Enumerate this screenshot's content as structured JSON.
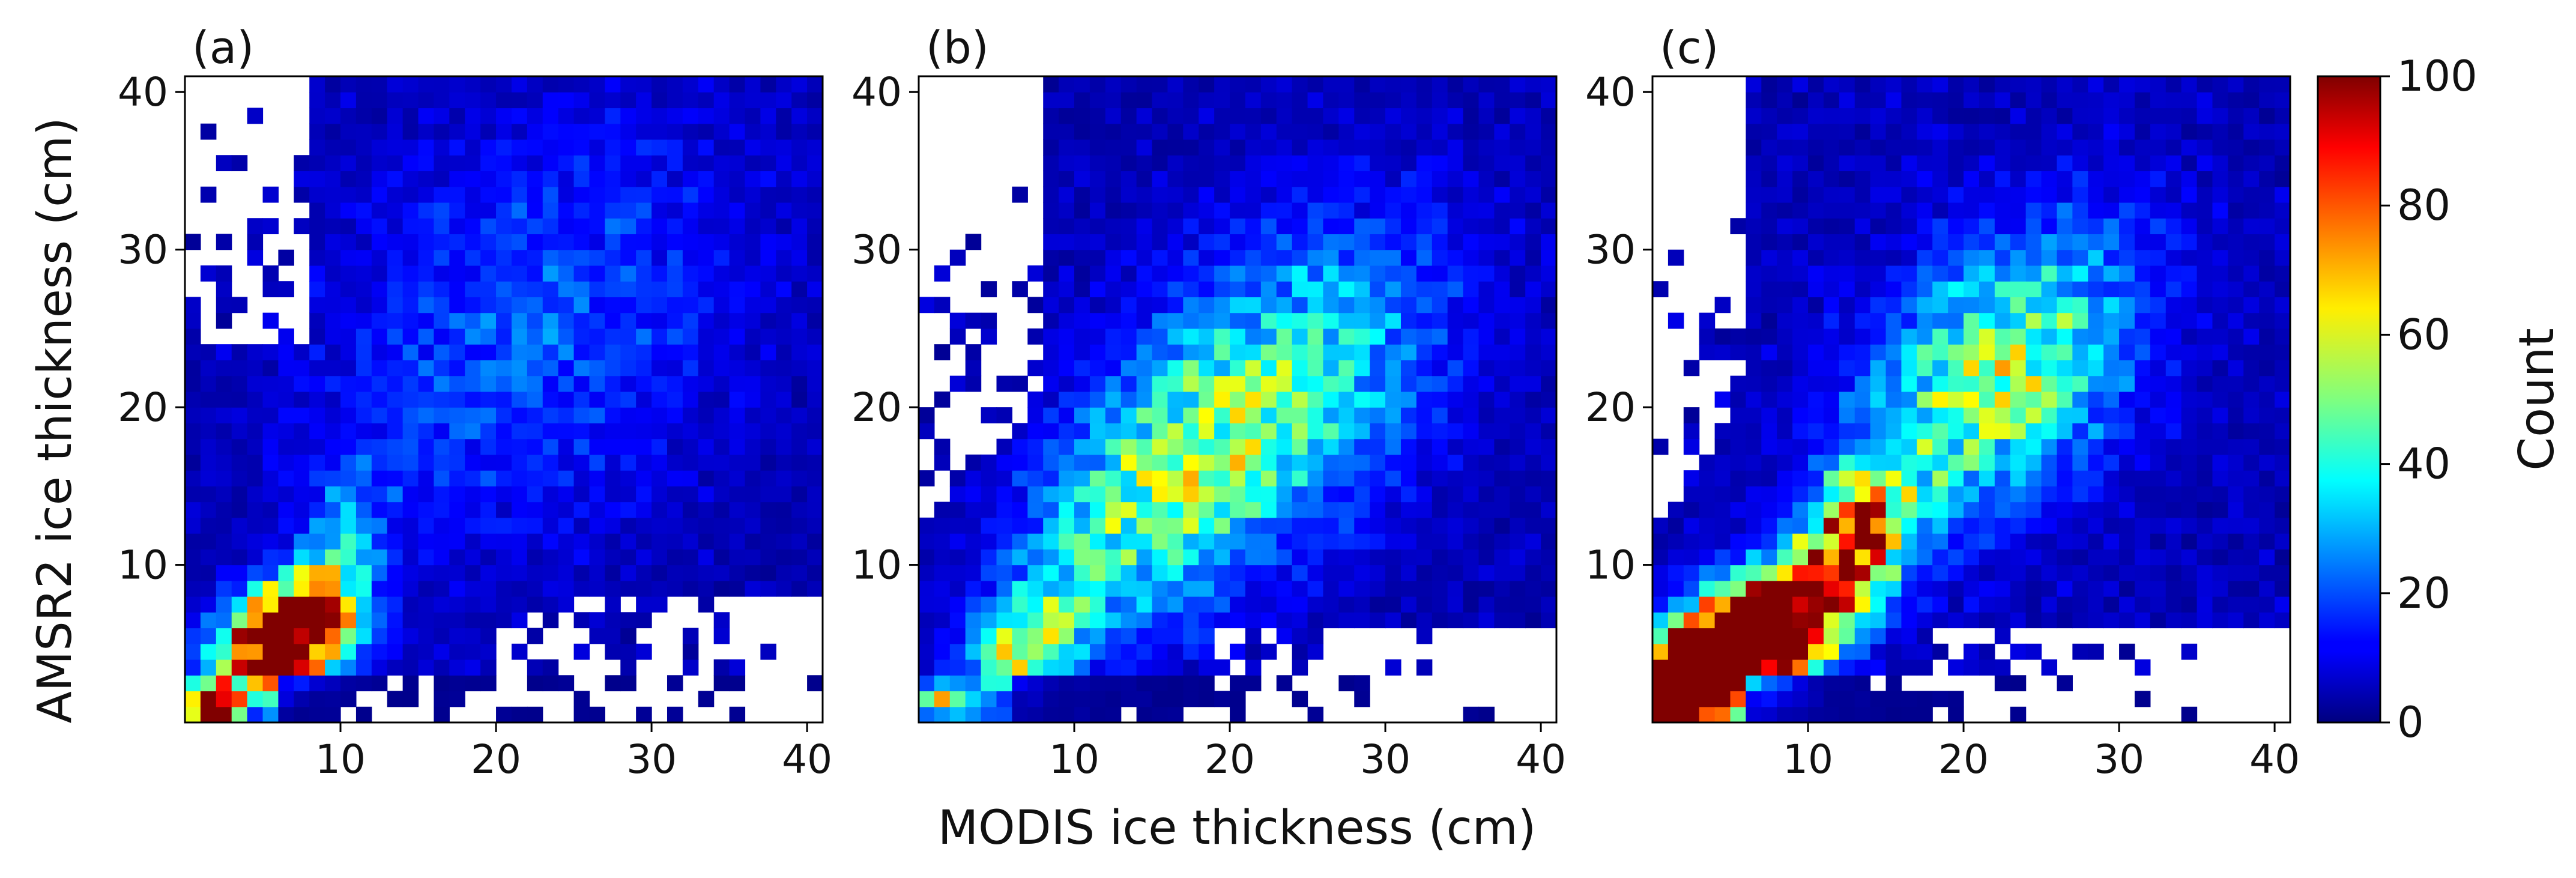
{
  "chart_data": {
    "type": "heatmap",
    "x_label": "MODIS ice thickness (cm)",
    "y_label": "AMSR2 ice thickness (cm)",
    "x_range": [
      0,
      41
    ],
    "y_range": [
      0,
      41
    ],
    "bin_width": 1,
    "x_ticks": [
      10,
      20,
      30,
      40
    ],
    "y_ticks": [
      10,
      20,
      30,
      40
    ],
    "colormap": "jet",
    "panels": [
      {
        "label": "(a)",
        "description_of_density": "Dense core near MODIS 4-9 cm and AMSR2 3-9 cm, diffuse cloud elsewhere, empty bins in the upper-left and lower-right",
        "components": [
          {
            "cx": 6.5,
            "cy": 5.5,
            "sx": 2.6,
            "sy": 2.3,
            "rho": 0.35,
            "amp": 140
          },
          {
            "cx": 1.5,
            "cy": 1.0,
            "sx": 1.2,
            "sy": 1.0,
            "rho": 0.0,
            "amp": 130
          },
          {
            "cx": 10.0,
            "cy": 11.0,
            "sx": 2.0,
            "sy": 3.5,
            "rho": 0.3,
            "amp": 25
          },
          {
            "cx": 22.0,
            "cy": 25.0,
            "sx": 9.0,
            "sy": 9.0,
            "rho": 0.3,
            "amp": 16
          }
        ],
        "background": 6,
        "band": {
          "ymin": 3.5,
          "xmax": 40,
          "amp": 1.5
        },
        "empty_regions": [
          {
            "xmax": 8,
            "ymin_base": 24,
            "slope": 0.0
          },
          {
            "xmin": 20,
            "ymax": 8
          }
        ]
      },
      {
        "label": "(b)",
        "description_of_density": "Broad diagonal ridge from MODIS 3-25 cm, with concentrated bins near MODIS 2-12 cm and AMSR2 1-8 cm",
        "components": [
          {
            "cx": 1.5,
            "cy": 1.5,
            "sx": 1.5,
            "sy": 0.8,
            "rho": 0.0,
            "amp": 55
          },
          {
            "cx": 7.0,
            "cy": 5.0,
            "sx": 2.5,
            "sy": 2.5,
            "rho": 0.4,
            "amp": 45
          },
          {
            "cx": 15.0,
            "cy": 14.0,
            "sx": 6.0,
            "sy": 6.0,
            "rho": 0.5,
            "amp": 38
          },
          {
            "cx": 24.0,
            "cy": 22.0,
            "sx": 7.0,
            "sy": 7.0,
            "rho": 0.3,
            "amp": 30
          }
        ],
        "background": 6,
        "band": {
          "ymin": 3.0,
          "xmax": 40,
          "amp": 2.0
        },
        "empty_regions": [
          {
            "xmax": 8,
            "ymin_base": 12,
            "slope": 1.0
          },
          {
            "xmin": 18,
            "ymax": 6
          }
        ]
      },
      {
        "label": "(c)",
        "description_of_density": "Saturated (red) ridge from the origin to MODIS ~14 cm / AMSR2 ~12 cm, with elevated counts extending to MODIS ~25 cm / AMSR2 ~25 cm",
        "components": [
          {
            "cx": 6.0,
            "cy": 5.0,
            "sx": 4.0,
            "sy": 3.0,
            "rho": 0.55,
            "amp": 180
          },
          {
            "cx": 2.0,
            "cy": 2.0,
            "sx": 1.5,
            "sy": 1.5,
            "rho": 0.0,
            "amp": 150
          },
          {
            "cx": 13.0,
            "cy": 12.0,
            "sx": 2.5,
            "sy": 3.0,
            "rho": 0.4,
            "amp": 70
          },
          {
            "cx": 22.0,
            "cy": 22.0,
            "sx": 6.0,
            "sy": 6.0,
            "rho": 0.4,
            "amp": 48
          }
        ],
        "background": 7,
        "band": {
          "ymin": 3.0,
          "xmax": 40,
          "amp": 2.0
        },
        "empty_regions": [
          {
            "xmax": 6,
            "ymin_base": 12,
            "slope": 1.5
          },
          {
            "xmin": 18,
            "ymax": 6
          }
        ]
      }
    ],
    "colorbar": {
      "label": "Count",
      "min": 0,
      "max": 100,
      "ticks": [
        0,
        20,
        40,
        60,
        80,
        100
      ]
    }
  }
}
